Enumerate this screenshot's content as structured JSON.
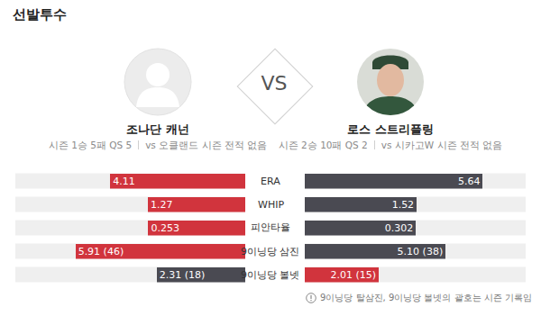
{
  "title": "선발투수",
  "vs": "VS",
  "players": [
    {
      "name": "조나단 캐넌",
      "record": [
        "시즌 1승 5패 QS 5",
        "vs 오클랜드 시즌 전적 없음"
      ]
    },
    {
      "name": "로스 스트리플링",
      "record": [
        "시즌 2승 10패 QS 2",
        "vs 시카고W 시즌 전적 없음"
      ]
    }
  ],
  "chart_data": [
    {
      "type": "bar",
      "orientation": "horizontal",
      "title": "ERA",
      "values": [
        4.11,
        5.64
      ],
      "value_labels": [
        "4.11",
        "5.64"
      ],
      "colors": [
        "#d1343d",
        "#4a4a52"
      ],
      "xlim": [
        0,
        7
      ],
      "tick_labels": false,
      "data_labels": true
    },
    {
      "type": "bar",
      "orientation": "horizontal",
      "title": "WHIP",
      "values": [
        1.27,
        1.52
      ],
      "value_labels": [
        "1.27",
        "1.52"
      ],
      "colors": [
        "#d1343d",
        "#4a4a52"
      ],
      "xlim": [
        0,
        3
      ],
      "tick_labels": false,
      "data_labels": true
    },
    {
      "type": "bar",
      "orientation": "horizontal",
      "title": "피안타율",
      "values": [
        0.253,
        0.302
      ],
      "value_labels": [
        "0.253",
        "0.302"
      ],
      "colors": [
        "#d1343d",
        "#4a4a52"
      ],
      "xlim": [
        0,
        0.6
      ],
      "tick_labels": false,
      "data_labels": true
    },
    {
      "type": "bar",
      "orientation": "horizontal",
      "title": "9이닝당 삼진",
      "values": [
        5.91,
        5.1
      ],
      "value_labels": [
        "5.91 (46)",
        "5.10 (38)"
      ],
      "colors": [
        "#d1343d",
        "#4a4a52"
      ],
      "xlim": [
        0,
        8
      ],
      "tick_labels": false,
      "data_labels": true
    },
    {
      "type": "bar",
      "orientation": "horizontal",
      "title": "9이닝당 볼넷",
      "values": [
        2.31,
        2.01
      ],
      "value_labels": [
        "2.31 (18)",
        "2.01 (15)"
      ],
      "colors": [
        "#4a4a52",
        "#d1343d"
      ],
      "xlim": [
        0,
        6
      ],
      "tick_labels": false,
      "data_labels": true
    }
  ],
  "footnote": "9이닝당 탈삼진, 9이닝당 볼넷의 괄호는 시즌 기록임"
}
